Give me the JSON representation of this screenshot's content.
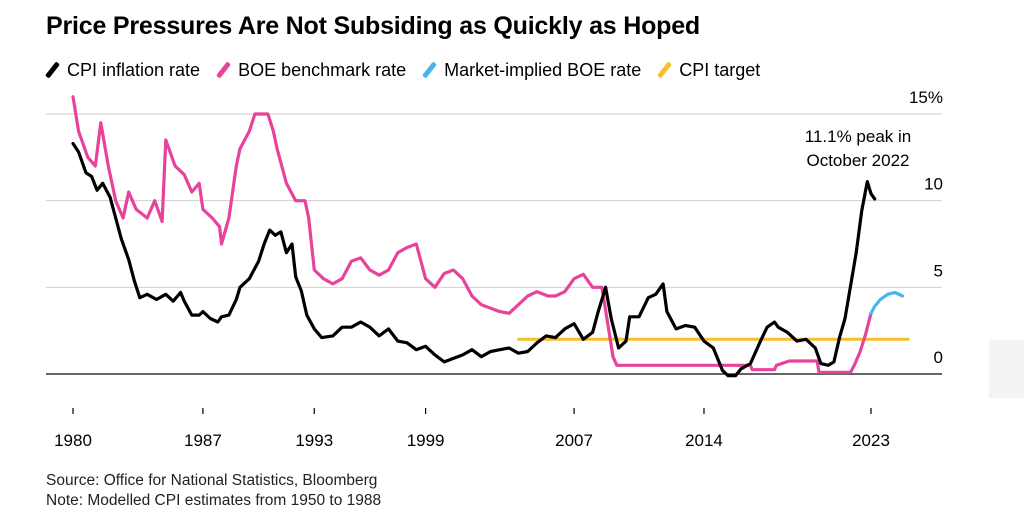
{
  "title": "Price Pressures Are Not Subsiding as Quickly as Hoped",
  "legend": [
    {
      "label": "CPI inflation rate",
      "color": "#000000"
    },
    {
      "label": "BOE benchmark rate",
      "color": "#e8439a"
    },
    {
      "label": "Market-implied BOE rate",
      "color": "#4ab4f0"
    },
    {
      "label": "CPI target",
      "color": "#f5c02a"
    }
  ],
  "footer": {
    "source": "Source: Office for National Statistics, Bloomberg",
    "note": "Note: Modelled CPI estimates from 1950 to 1988"
  },
  "chart_data": {
    "type": "line",
    "title": "Price Pressures Are Not Subsiding as Quickly as Hoped",
    "xlim": [
      1980,
      2026
    ],
    "ylim": [
      -2,
      16
    ],
    "x_ticks": [
      {
        "value": 1980,
        "label": "1980"
      },
      {
        "value": 1987,
        "label": "1987"
      },
      {
        "value": 1993,
        "label": "1993"
      },
      {
        "value": 1999,
        "label": "1999"
      },
      {
        "value": 2007,
        "label": "2007"
      },
      {
        "value": 2014,
        "label": "2014"
      },
      {
        "value": 2023,
        "label": "2023"
      }
    ],
    "y_ticks": [
      {
        "value": 15,
        "label": "15%"
      },
      {
        "value": 10,
        "label": "10"
      },
      {
        "value": 5,
        "label": "5"
      },
      {
        "value": 0,
        "label": "0"
      }
    ],
    "grid": true,
    "legend_position": "top",
    "annotation": {
      "text_lines": [
        "11.1% peak in",
        "October 2022"
      ],
      "x": 2022.8,
      "y": 11.1
    },
    "series": [
      {
        "name": "CPI inflation rate",
        "color": "#000000",
        "points": [
          [
            1980,
            13.3
          ],
          [
            1980.3,
            12.8
          ],
          [
            1980.7,
            11.6
          ],
          [
            1981,
            11.4
          ],
          [
            1981.3,
            10.6
          ],
          [
            1981.6,
            11.0
          ],
          [
            1982,
            10.2
          ],
          [
            1982.3,
            9.0
          ],
          [
            1982.6,
            7.8
          ],
          [
            1983,
            6.6
          ],
          [
            1983.3,
            5.4
          ],
          [
            1983.6,
            4.4
          ],
          [
            1984,
            4.6
          ],
          [
            1984.5,
            4.3
          ],
          [
            1985,
            4.6
          ],
          [
            1985.4,
            4.2
          ],
          [
            1985.8,
            4.7
          ],
          [
            1986,
            4.2
          ],
          [
            1986.4,
            3.4
          ],
          [
            1986.8,
            3.4
          ],
          [
            1987,
            3.6
          ],
          [
            1987.4,
            3.2
          ],
          [
            1987.8,
            3.0
          ],
          [
            1988,
            3.3
          ],
          [
            1988.4,
            3.4
          ],
          [
            1988.8,
            4.3
          ],
          [
            1989,
            5.0
          ],
          [
            1989.5,
            5.5
          ],
          [
            1990,
            6.5
          ],
          [
            1990.3,
            7.5
          ],
          [
            1990.6,
            8.3
          ],
          [
            1990.9,
            8.0
          ],
          [
            1991.2,
            8.2
          ],
          [
            1991.5,
            7.0
          ],
          [
            1991.8,
            7.5
          ],
          [
            1992,
            5.6
          ],
          [
            1992.3,
            4.8
          ],
          [
            1992.6,
            3.4
          ],
          [
            1993,
            2.6
          ],
          [
            1993.4,
            2.1
          ],
          [
            1994,
            2.2
          ],
          [
            1994.5,
            2.7
          ],
          [
            1995,
            2.7
          ],
          [
            1995.5,
            3.0
          ],
          [
            1996,
            2.7
          ],
          [
            1996.5,
            2.2
          ],
          [
            1997,
            2.6
          ],
          [
            1997.5,
            1.9
          ],
          [
            1998,
            1.8
          ],
          [
            1998.5,
            1.4
          ],
          [
            1999,
            1.6
          ],
          [
            1999.5,
            1.1
          ],
          [
            2000,
            0.7
          ],
          [
            2000.5,
            0.9
          ],
          [
            2001,
            1.1
          ],
          [
            2001.5,
            1.4
          ],
          [
            2002,
            1.0
          ],
          [
            2002.5,
            1.3
          ],
          [
            2003,
            1.4
          ],
          [
            2003.5,
            1.5
          ],
          [
            2004,
            1.2
          ],
          [
            2004.5,
            1.3
          ],
          [
            2005,
            1.8
          ],
          [
            2005.5,
            2.2
          ],
          [
            2006,
            2.1
          ],
          [
            2006.5,
            2.6
          ],
          [
            2007,
            2.9
          ],
          [
            2007.5,
            2.0
          ],
          [
            2008,
            2.4
          ],
          [
            2008.3,
            3.6
          ],
          [
            2008.7,
            5.0
          ],
          [
            2009,
            3.2
          ],
          [
            2009.4,
            1.5
          ],
          [
            2009.8,
            1.9
          ],
          [
            2010,
            3.3
          ],
          [
            2010.5,
            3.3
          ],
          [
            2011,
            4.4
          ],
          [
            2011.4,
            4.6
          ],
          [
            2011.8,
            5.2
          ],
          [
            2012,
            3.6
          ],
          [
            2012.5,
            2.6
          ],
          [
            2013,
            2.8
          ],
          [
            2013.5,
            2.7
          ],
          [
            2014,
            1.9
          ],
          [
            2014.5,
            1.5
          ],
          [
            2015,
            0.2
          ],
          [
            2015.3,
            -0.1
          ],
          [
            2015.7,
            -0.1
          ],
          [
            2016,
            0.3
          ],
          [
            2016.5,
            0.6
          ],
          [
            2017,
            1.8
          ],
          [
            2017.4,
            2.7
          ],
          [
            2017.8,
            3.0
          ],
          [
            2018,
            2.7
          ],
          [
            2018.5,
            2.4
          ],
          [
            2019,
            1.9
          ],
          [
            2019.5,
            2.0
          ],
          [
            2020,
            1.5
          ],
          [
            2020.3,
            0.6
          ],
          [
            2020.7,
            0.5
          ],
          [
            2021,
            0.7
          ],
          [
            2021.3,
            2.1
          ],
          [
            2021.6,
            3.2
          ],
          [
            2021.9,
            5.1
          ],
          [
            2022.2,
            7.0
          ],
          [
            2022.5,
            9.4
          ],
          [
            2022.8,
            11.1
          ],
          [
            2023,
            10.4
          ],
          [
            2023.2,
            10.1
          ]
        ]
      },
      {
        "name": "BOE benchmark rate",
        "color": "#e8439a",
        "points": [
          [
            1980,
            16.0
          ],
          [
            1980.3,
            14.0
          ],
          [
            1980.8,
            12.5
          ],
          [
            1981.2,
            12.0
          ],
          [
            1981.5,
            14.5
          ],
          [
            1981.9,
            12.0
          ],
          [
            1982.3,
            10.0
          ],
          [
            1982.7,
            9.0
          ],
          [
            1983,
            10.5
          ],
          [
            1983.4,
            9.5
          ],
          [
            1984,
            9.0
          ],
          [
            1984.4,
            10.0
          ],
          [
            1984.8,
            8.8
          ],
          [
            1985,
            13.5
          ],
          [
            1985.5,
            12.0
          ],
          [
            1986,
            11.5
          ],
          [
            1986.4,
            10.5
          ],
          [
            1986.8,
            11.0
          ],
          [
            1987,
            9.5
          ],
          [
            1987.5,
            9.0
          ],
          [
            1987.9,
            8.5
          ],
          [
            1988,
            7.5
          ],
          [
            1988.4,
            9.0
          ],
          [
            1988.8,
            12.0
          ],
          [
            1989,
            13.0
          ],
          [
            1989.5,
            14.0
          ],
          [
            1989.8,
            15.0
          ],
          [
            1990.5,
            15.0
          ],
          [
            1990.8,
            14.0
          ],
          [
            1991,
            13.0
          ],
          [
            1991.5,
            11.0
          ],
          [
            1992,
            10.0
          ],
          [
            1992.5,
            10.0
          ],
          [
            1992.7,
            9.0
          ],
          [
            1993,
            6.0
          ],
          [
            1993.5,
            5.5
          ],
          [
            1994,
            5.2
          ],
          [
            1994.5,
            5.5
          ],
          [
            1995,
            6.5
          ],
          [
            1995.5,
            6.7
          ],
          [
            1996,
            6.0
          ],
          [
            1996.5,
            5.7
          ],
          [
            1997,
            6.0
          ],
          [
            1997.5,
            7.0
          ],
          [
            1998,
            7.3
          ],
          [
            1998.5,
            7.5
          ],
          [
            1999,
            5.5
          ],
          [
            1999.5,
            5.0
          ],
          [
            2000,
            5.8
          ],
          [
            2000.5,
            6.0
          ],
          [
            2001,
            5.5
          ],
          [
            2001.5,
            4.5
          ],
          [
            2002,
            4.0
          ],
          [
            2003,
            3.6
          ],
          [
            2003.5,
            3.5
          ],
          [
            2004,
            4.0
          ],
          [
            2004.5,
            4.5
          ],
          [
            2005,
            4.75
          ],
          [
            2005.6,
            4.5
          ],
          [
            2006,
            4.5
          ],
          [
            2006.5,
            4.75
          ],
          [
            2007,
            5.5
          ],
          [
            2007.5,
            5.75
          ],
          [
            2008,
            5.0
          ],
          [
            2008.5,
            5.0
          ],
          [
            2008.8,
            3.0
          ],
          [
            2009.1,
            1.0
          ],
          [
            2009.3,
            0.5
          ],
          [
            2016.5,
            0.5
          ],
          [
            2016.6,
            0.25
          ],
          [
            2017.8,
            0.25
          ],
          [
            2017.9,
            0.5
          ],
          [
            2018.6,
            0.75
          ],
          [
            2020.1,
            0.75
          ],
          [
            2020.2,
            0.1
          ],
          [
            2021.9,
            0.1
          ],
          [
            2022.1,
            0.5
          ],
          [
            2022.4,
            1.25
          ],
          [
            2022.7,
            2.25
          ],
          [
            2023,
            3.5
          ]
        ]
      },
      {
        "name": "Market-implied BOE rate",
        "color": "#4ab4f0",
        "points": [
          [
            2023,
            3.5
          ],
          [
            2023.2,
            3.9
          ],
          [
            2023.5,
            4.3
          ],
          [
            2023.9,
            4.6
          ],
          [
            2024.3,
            4.7
          ],
          [
            2024.7,
            4.5
          ]
        ]
      },
      {
        "name": "CPI target",
        "color": "#f5c02a",
        "points": [
          [
            2004,
            2.0
          ],
          [
            2025,
            2.0
          ]
        ]
      }
    ]
  }
}
